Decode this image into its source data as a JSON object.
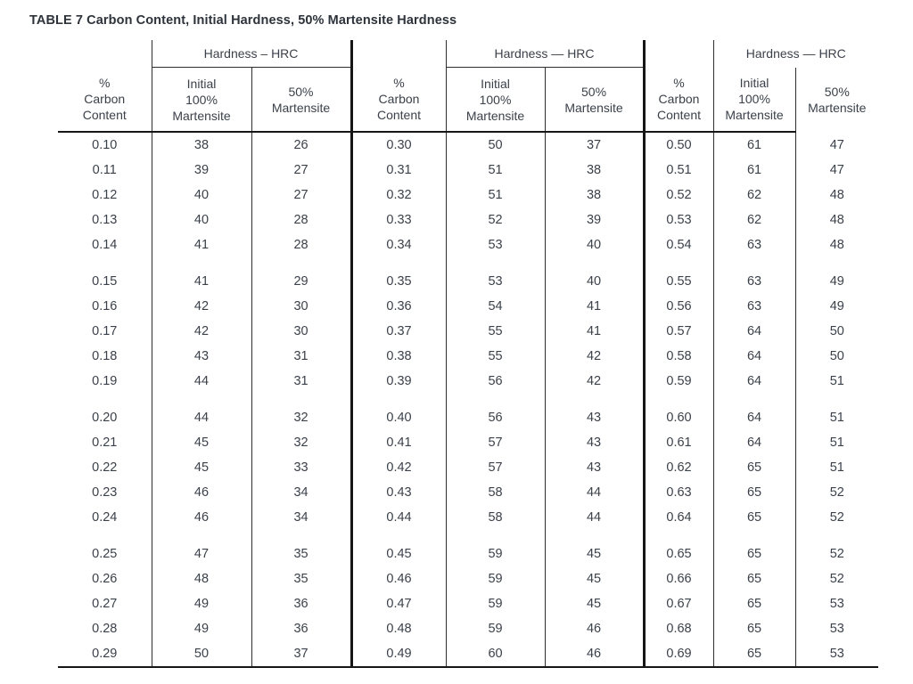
{
  "title": "TABLE 7 Carbon Content, Initial Hardness, 50% Martensite Hardness",
  "groups": [
    {
      "hardness_header": "Hardness – HRC",
      "carbon_header": "%\nCarbon\nContent",
      "initial_header": "Initial\n100%\nMartensite",
      "fifty_header": "50%\nMartensite",
      "rows": [
        [
          "0.10",
          "38",
          "26"
        ],
        [
          "0.11",
          "39",
          "27"
        ],
        [
          "0.12",
          "40",
          "27"
        ],
        [
          "0.13",
          "40",
          "28"
        ],
        [
          "0.14",
          "41",
          "28"
        ],
        [
          "0.15",
          "41",
          "29"
        ],
        [
          "0.16",
          "42",
          "30"
        ],
        [
          "0.17",
          "42",
          "30"
        ],
        [
          "0.18",
          "43",
          "31"
        ],
        [
          "0.19",
          "44",
          "31"
        ],
        [
          "0.20",
          "44",
          "32"
        ],
        [
          "0.21",
          "45",
          "32"
        ],
        [
          "0.22",
          "45",
          "33"
        ],
        [
          "0.23",
          "46",
          "34"
        ],
        [
          "0.24",
          "46",
          "34"
        ],
        [
          "0.25",
          "47",
          "35"
        ],
        [
          "0.26",
          "48",
          "35"
        ],
        [
          "0.27",
          "49",
          "36"
        ],
        [
          "0.28",
          "49",
          "36"
        ],
        [
          "0.29",
          "50",
          "37"
        ]
      ]
    },
    {
      "hardness_header": "Hardness — HRC",
      "carbon_header": "%\nCarbon\nContent",
      "initial_header": "Initial\n100%\nMartensite",
      "fifty_header": "50%\nMartensite",
      "rows": [
        [
          "0.30",
          "50",
          "37"
        ],
        [
          "0.31",
          "51",
          "38"
        ],
        [
          "0.32",
          "51",
          "38"
        ],
        [
          "0.33",
          "52",
          "39"
        ],
        [
          "0.34",
          "53",
          "40"
        ],
        [
          "0.35",
          "53",
          "40"
        ],
        [
          "0.36",
          "54",
          "41"
        ],
        [
          "0.37",
          "55",
          "41"
        ],
        [
          "0.38",
          "55",
          "42"
        ],
        [
          "0.39",
          "56",
          "42"
        ],
        [
          "0.40",
          "56",
          "43"
        ],
        [
          "0.41",
          "57",
          "43"
        ],
        [
          "0.42",
          "57",
          "43"
        ],
        [
          "0.43",
          "58",
          "44"
        ],
        [
          "0.44",
          "58",
          "44"
        ],
        [
          "0.45",
          "59",
          "45"
        ],
        [
          "0.46",
          "59",
          "45"
        ],
        [
          "0.47",
          "59",
          "45"
        ],
        [
          "0.48",
          "59",
          "46"
        ],
        [
          "0.49",
          "60",
          "46"
        ]
      ]
    },
    {
      "hardness_header": "Hardness — HRC",
      "carbon_header": "%\nCarbon\nContent",
      "initial_header": "Initial\n100%\nMartensite",
      "fifty_header": "50%\nMartensite",
      "rows": [
        [
          "0.50",
          "61",
          "47"
        ],
        [
          "0.51",
          "61",
          "47"
        ],
        [
          "0.52",
          "62",
          "48"
        ],
        [
          "0.53",
          "62",
          "48"
        ],
        [
          "0.54",
          "63",
          "48"
        ],
        [
          "0.55",
          "63",
          "49"
        ],
        [
          "0.56",
          "63",
          "49"
        ],
        [
          "0.57",
          "64",
          "50"
        ],
        [
          "0.58",
          "64",
          "50"
        ],
        [
          "0.59",
          "64",
          "51"
        ],
        [
          "0.60",
          "64",
          "51"
        ],
        [
          "0.61",
          "64",
          "51"
        ],
        [
          "0.62",
          "65",
          "51"
        ],
        [
          "0.63",
          "65",
          "52"
        ],
        [
          "0.64",
          "65",
          "52"
        ],
        [
          "0.65",
          "65",
          "52"
        ],
        [
          "0.66",
          "65",
          "52"
        ],
        [
          "0.67",
          "65",
          "53"
        ],
        [
          "0.68",
          "65",
          "53"
        ],
        [
          "0.69",
          "65",
          "53"
        ]
      ]
    }
  ]
}
